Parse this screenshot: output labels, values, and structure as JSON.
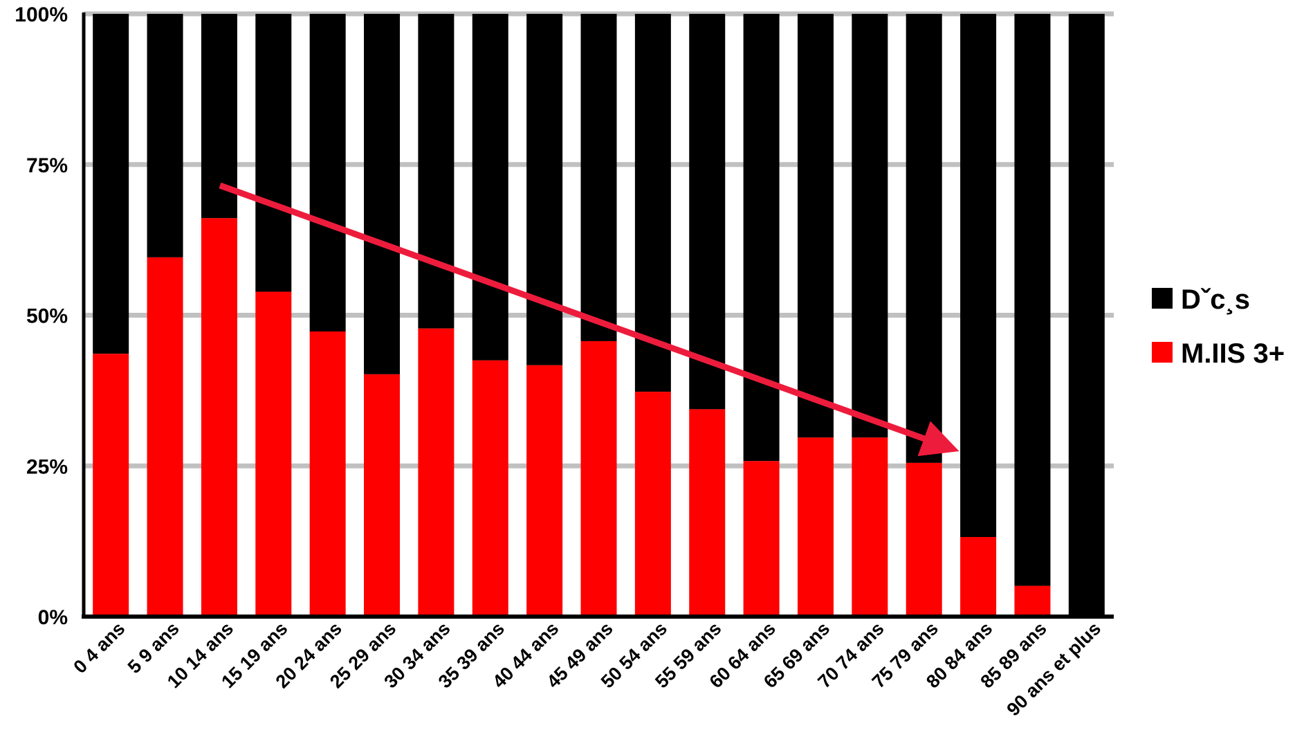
{
  "chart_data": {
    "type": "bar",
    "stacked": true,
    "normalized": true,
    "categories": [
      "0  4 ans",
      "5  9 ans",
      "10  14 ans",
      "15  19 ans",
      "20  24 ans",
      "25  29 ans",
      "30  34 ans",
      "35  39 ans",
      "40  44 ans",
      "45  49 ans",
      "50  54 ans",
      "55  59 ans",
      "60  64 ans",
      "65  69 ans",
      "70  74 ans",
      "75  79 ans",
      "80  84 ans",
      "85  89 ans",
      "90 ans et plus"
    ],
    "series": [
      {
        "name": "M.IIS 3+",
        "color": "#ff0000",
        "values": [
          43.6,
          59.6,
          66.1,
          53.9,
          47.3,
          40.2,
          47.8,
          42.5,
          41.7,
          45.7,
          37.3,
          34.4,
          25.8,
          29.7,
          29.7,
          25.5,
          13.2,
          5.1,
          0
        ]
      },
      {
        "name": "Dˇc¸s",
        "color": "#000000",
        "values": [
          56.4,
          40.4,
          33.9,
          46.1,
          52.7,
          59.8,
          52.2,
          57.5,
          58.3,
          54.3,
          62.7,
          65.6,
          74.2,
          70.3,
          70.3,
          74.5,
          86.8,
          94.9,
          100
        ]
      }
    ],
    "yticks": [
      "0%",
      "25%",
      "50%",
      "75%",
      "100%"
    ],
    "ylim": [
      0,
      100
    ],
    "grid": true,
    "legend_position": "right",
    "annotation": "red arrow indicating a decreasing trend",
    "colors": {
      "arrow": "#ee1c3c",
      "grid": "#c0c0c0",
      "axis": "#000000"
    }
  }
}
